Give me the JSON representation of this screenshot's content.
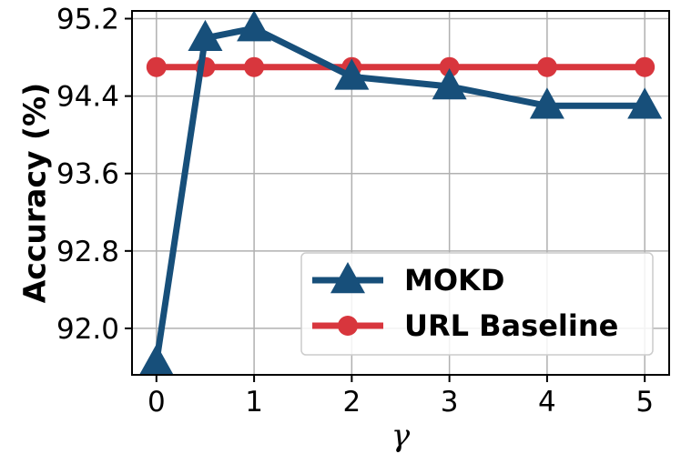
{
  "chart_data": {
    "type": "line",
    "title": "",
    "xlabel": "γ",
    "ylabel": "Accuracy (%)",
    "xlim": [
      -0.25,
      5.25
    ],
    "ylim": [
      91.52,
      95.28
    ],
    "xticks": [
      0,
      1,
      2,
      3,
      4,
      5
    ],
    "yticks": [
      92.0,
      92.8,
      93.6,
      94.4,
      95.2
    ],
    "ytick_labels": [
      "92.0",
      "92.8",
      "93.6",
      "94.4",
      "95.2"
    ],
    "grid": true,
    "legend_position": "lower-right",
    "series": [
      {
        "name": "MOKD",
        "color": "#174f7a",
        "marker": "triangle",
        "x": [
          0,
          0.5,
          1,
          2,
          3,
          4,
          5
        ],
        "y": [
          91.65,
          95.0,
          95.1,
          94.6,
          94.5,
          94.3,
          94.3
        ]
      },
      {
        "name": "URL Baseline",
        "color": "#d8363d",
        "marker": "circle",
        "x": [
          0,
          0.5,
          1,
          2,
          3,
          4,
          5
        ],
        "y": [
          94.7,
          94.7,
          94.7,
          94.7,
          94.7,
          94.7,
          94.7
        ]
      }
    ]
  }
}
